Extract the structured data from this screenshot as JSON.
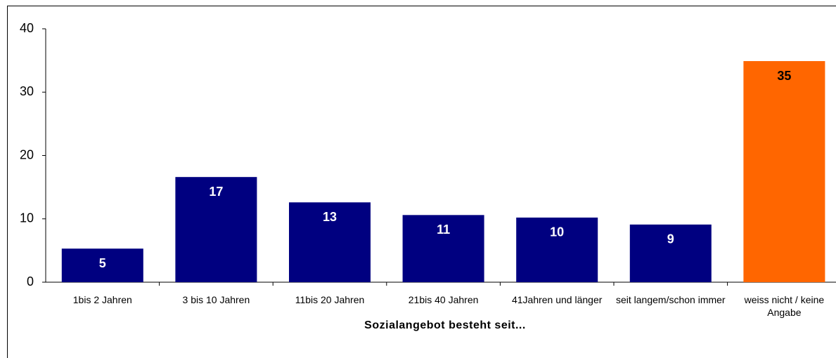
{
  "chart_data": {
    "type": "bar",
    "xlabel": "Sozialangebot besteht seit...",
    "categories": [
      "1bis 2 Jahren",
      "3 bis 10 Jahren",
      "11bis 20 Jahren",
      "21bis 40 Jahren",
      "41Jahren und länger",
      "seit langem/schon immer",
      "weiss nicht / keine Angabe"
    ],
    "values": [
      5.3,
      16.6,
      12.6,
      10.6,
      10.2,
      9.1,
      34.9
    ],
    "value_labels": [
      "5",
      "17",
      "13",
      "11",
      "10",
      "9",
      "35"
    ],
    "colors": [
      "#000080",
      "#000080",
      "#000080",
      "#000080",
      "#000080",
      "#000080",
      "#ff6600"
    ],
    "ylim": [
      0,
      40
    ],
    "yticks": [
      0,
      10,
      20,
      30,
      40
    ],
    "grid": false
  }
}
